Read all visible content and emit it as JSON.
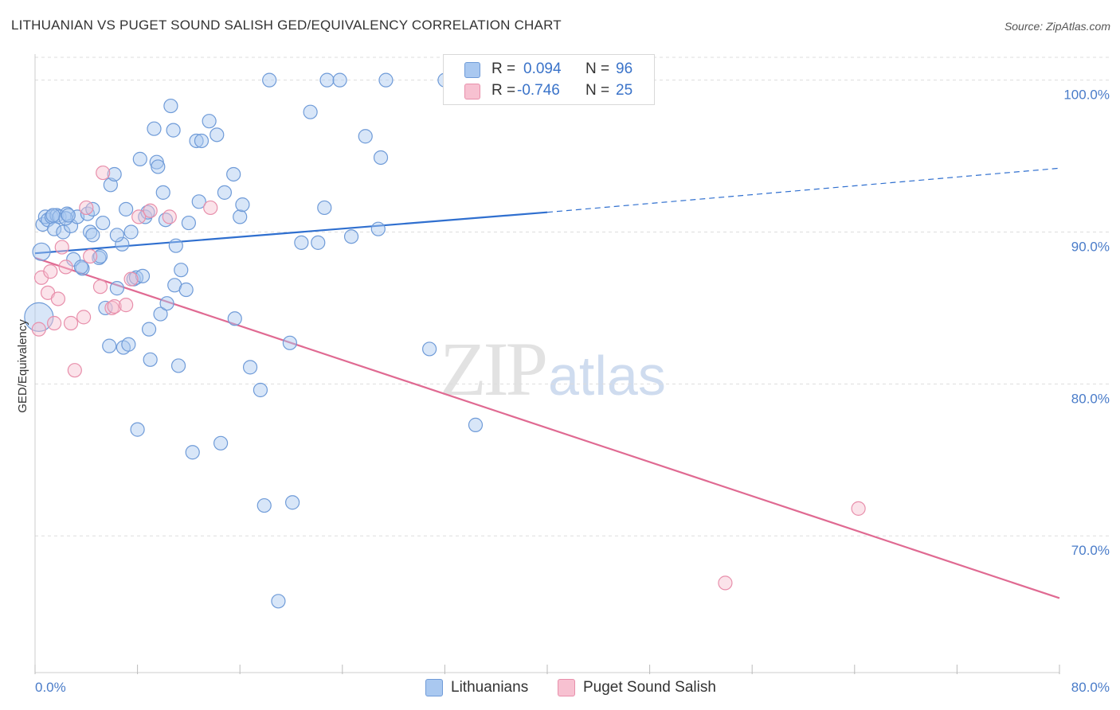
{
  "title": "LITHUANIAN VS PUGET SOUND SALISH GED/EQUIVALENCY CORRELATION CHART",
  "source": "Source: ZipAtlas.com",
  "watermark": {
    "zip": "ZIP",
    "atlas": "atlas"
  },
  "legend": {
    "rows": [
      {
        "r_label": "R =",
        "r_value": "0.094",
        "n_label": "N =",
        "n_value": "96",
        "color": "#a9c8f0",
        "border": "#6f9bd8"
      },
      {
        "r_label": "R =",
        "r_value": "-0.746",
        "n_label": "N =",
        "n_value": "25",
        "color": "#f7c1d1",
        "border": "#e88fab"
      }
    ]
  },
  "bottom_legend": [
    {
      "label": "Lithuanians",
      "color": "#a9c8f0",
      "border": "#6f9bd8"
    },
    {
      "label": "Puget Sound Salish",
      "color": "#f7c1d1",
      "border": "#e88fab"
    }
  ],
  "chart_data": {
    "type": "scatter",
    "title": "LITHUANIAN VS PUGET SOUND SALISH GED/EQUIVALENCY CORRELATION CHART",
    "xlabel": "",
    "ylabel": "GED/Equivalency",
    "xlim": [
      0,
      80
    ],
    "ylim": [
      61,
      101.5
    ],
    "x_tick_labels": [
      "0.0%",
      "80.0%"
    ],
    "y_ticks": [
      70,
      80,
      90,
      100
    ],
    "y_tick_labels": [
      "70.0%",
      "80.0%",
      "90.0%",
      "100.0%"
    ],
    "grid": true,
    "legend_position": "top-center",
    "series": [
      {
        "name": "Lithuanians",
        "color": "#6f9bd8",
        "fill": "#a9c8f0",
        "trend": {
          "x0": 0,
          "y0": 88.6,
          "x1": 40,
          "y1": 91.3,
          "dashed_to_x": 80,
          "dashed_to_y": 94.2,
          "color": "#2f6fcf"
        },
        "points": [
          [
            0.5,
            88.7
          ],
          [
            0.6,
            90.5
          ],
          [
            0.8,
            91.0
          ],
          [
            1.0,
            90.8
          ],
          [
            1.3,
            91.0
          ],
          [
            1.5,
            90.2
          ],
          [
            1.7,
            91.1
          ],
          [
            1.9,
            91.0
          ],
          [
            2.2,
            90.0
          ],
          [
            2.5,
            91.2
          ],
          [
            2.8,
            90.4
          ],
          [
            3.0,
            88.2
          ],
          [
            3.3,
            91.0
          ],
          [
            3.7,
            87.6
          ],
          [
            4.1,
            91.2
          ],
          [
            4.3,
            90.0
          ],
          [
            4.5,
            89.8
          ],
          [
            5.0,
            88.3
          ],
          [
            5.1,
            88.4
          ],
          [
            5.3,
            90.6
          ],
          [
            5.5,
            85.0
          ],
          [
            5.8,
            82.5
          ],
          [
            5.9,
            93.1
          ],
          [
            6.2,
            93.8
          ],
          [
            6.4,
            86.3
          ],
          [
            6.8,
            89.2
          ],
          [
            6.9,
            82.4
          ],
          [
            7.1,
            91.5
          ],
          [
            7.3,
            82.6
          ],
          [
            7.5,
            90.0
          ],
          [
            7.7,
            86.9
          ],
          [
            7.9,
            87.0
          ],
          [
            8.0,
            77.0
          ],
          [
            8.2,
            94.8
          ],
          [
            8.4,
            87.1
          ],
          [
            8.6,
            91.0
          ],
          [
            8.8,
            91.3
          ],
          [
            8.9,
            83.6
          ],
          [
            9.0,
            81.6
          ],
          [
            9.3,
            96.8
          ],
          [
            9.5,
            94.6
          ],
          [
            9.6,
            94.3
          ],
          [
            9.8,
            84.6
          ],
          [
            10.0,
            92.6
          ],
          [
            10.2,
            90.8
          ],
          [
            10.3,
            85.3
          ],
          [
            10.6,
            98.3
          ],
          [
            10.8,
            96.7
          ],
          [
            10.9,
            86.5
          ],
          [
            11.2,
            81.2
          ],
          [
            11.4,
            87.5
          ],
          [
            11.8,
            86.2
          ],
          [
            12.0,
            90.6
          ],
          [
            12.3,
            75.5
          ],
          [
            12.6,
            96.0
          ],
          [
            12.8,
            92.0
          ],
          [
            13.0,
            96.0
          ],
          [
            13.6,
            97.3
          ],
          [
            14.2,
            96.4
          ],
          [
            14.5,
            76.1
          ],
          [
            14.8,
            92.6
          ],
          [
            15.5,
            93.8
          ],
          [
            15.6,
            84.3
          ],
          [
            16.0,
            91.0
          ],
          [
            16.2,
            91.8
          ],
          [
            16.8,
            81.1
          ],
          [
            17.6,
            79.6
          ],
          [
            17.9,
            72.0
          ],
          [
            18.3,
            100.0
          ],
          [
            19.0,
            65.7
          ],
          [
            19.9,
            82.7
          ],
          [
            20.1,
            72.2
          ],
          [
            20.8,
            89.3
          ],
          [
            21.5,
            97.9
          ],
          [
            22.1,
            89.3
          ],
          [
            22.6,
            91.6
          ],
          [
            22.8,
            100.0
          ],
          [
            23.8,
            100.0
          ],
          [
            24.7,
            89.7
          ],
          [
            25.8,
            96.3
          ],
          [
            26.8,
            90.2
          ],
          [
            27.0,
            94.9
          ],
          [
            27.4,
            100.0
          ],
          [
            30.8,
            82.3
          ],
          [
            32.0,
            100.0
          ],
          [
            32.5,
            100.0
          ],
          [
            34.4,
            77.3
          ],
          [
            35.1,
            100.0
          ],
          [
            4.5,
            91.5
          ],
          [
            6.4,
            89.8
          ],
          [
            11.0,
            89.1
          ],
          [
            1.4,
            91.1
          ],
          [
            2.4,
            90.9
          ],
          [
            0.3,
            84.4
          ],
          [
            3.6,
            87.7
          ],
          [
            2.6,
            91.1
          ]
        ],
        "point_sizes": {
          "0.3,84.4": "large",
          "0.5,88.7": "medium"
        }
      },
      {
        "name": "Puget Sound Salish",
        "color": "#e88fab",
        "fill": "#f7c1d1",
        "trend": {
          "x0": 0,
          "y0": 88.3,
          "x1": 80,
          "y1": 65.9,
          "color": "#e06a92"
        },
        "points": [
          [
            0.3,
            83.6
          ],
          [
            0.5,
            87.0
          ],
          [
            1.0,
            86.0
          ],
          [
            1.2,
            87.4
          ],
          [
            1.5,
            84.0
          ],
          [
            1.8,
            85.6
          ],
          [
            2.1,
            89.0
          ],
          [
            2.4,
            87.7
          ],
          [
            2.8,
            84.0
          ],
          [
            3.1,
            80.9
          ],
          [
            3.8,
            84.4
          ],
          [
            4.0,
            91.6
          ],
          [
            4.3,
            88.4
          ],
          [
            5.1,
            86.4
          ],
          [
            5.3,
            93.9
          ],
          [
            6.0,
            85.0
          ],
          [
            6.2,
            85.1
          ],
          [
            7.1,
            85.2
          ],
          [
            7.5,
            86.9
          ],
          [
            8.1,
            91.0
          ],
          [
            9.0,
            91.4
          ],
          [
            10.5,
            91.0
          ],
          [
            13.7,
            91.6
          ],
          [
            53.9,
            66.9
          ],
          [
            64.3,
            71.8
          ]
        ]
      }
    ]
  }
}
